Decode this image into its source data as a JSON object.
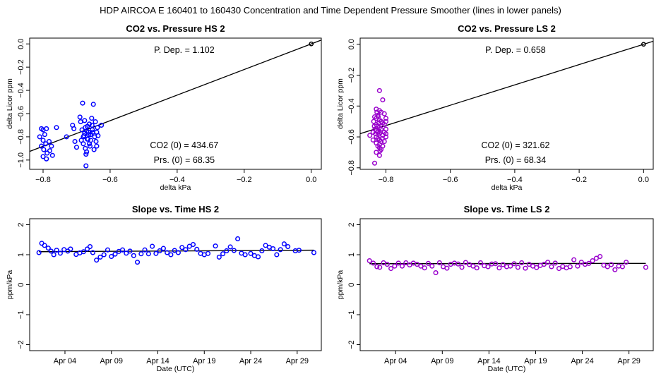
{
  "suptitle": "HDP    AIRCOA E    160401 to 160430    Concentration and Time Dependent Pressure Smoother (lines in lower panels)",
  "chart_data": [
    {
      "type": "scatter",
      "title": "CO2 vs. Pressure HS 2",
      "xlabel": "delta kPa",
      "ylabel": "delta Licor ppm",
      "xlim": [
        -0.84,
        0.03
      ],
      "ylim": [
        -1.08,
        0.05
      ],
      "xticks": [
        -0.8,
        -0.6,
        -0.4,
        -0.2,
        0.0
      ],
      "xtick_labels": [
        "−0.8",
        "−0.6",
        "−0.4",
        "−0.2",
        "0.0"
      ],
      "yticks": [
        0,
        -0.2,
        -0.4,
        -0.6,
        -0.8,
        -1.0
      ],
      "ytick_labels": [
        "0.0",
        "−0.2",
        "−0.4",
        "−0.6",
        "−0.8",
        "−1.0"
      ],
      "color": "#0000ff",
      "fit_line": {
        "slope": 1.102,
        "intercept": 0.0
      },
      "origin_point": [
        0,
        0
      ],
      "annotations": {
        "p_dep": "P. Dep. =  1.102",
        "co2_0": "CO2 (0) =  434.67",
        "prs_0": "Prs. (0) =  68.35"
      },
      "points": [
        [
          -0.805,
          -0.73
        ],
        [
          -0.8,
          -0.74
        ],
        [
          -0.795,
          -0.78
        ],
        [
          -0.79,
          -0.73
        ],
        [
          -0.81,
          -0.8
        ],
        [
          -0.8,
          -0.83
        ],
        [
          -0.792,
          -0.86
        ],
        [
          -0.805,
          -0.88
        ],
        [
          -0.798,
          -0.91
        ],
        [
          -0.788,
          -0.94
        ],
        [
          -0.8,
          -0.97
        ],
        [
          -0.79,
          -0.99
        ],
        [
          -0.78,
          -0.92
        ],
        [
          -0.775,
          -0.88
        ],
        [
          -0.782,
          -0.84
        ],
        [
          -0.772,
          -0.96
        ],
        [
          -0.76,
          -0.72
        ],
        [
          -0.73,
          -0.8
        ],
        [
          -0.712,
          -0.7
        ],
        [
          -0.708,
          -0.73
        ],
        [
          -0.705,
          -0.84
        ],
        [
          -0.7,
          -0.89
        ],
        [
          -0.69,
          -0.63
        ],
        [
          -0.688,
          -0.67
        ],
        [
          -0.682,
          -0.51
        ],
        [
          -0.684,
          -0.74
        ],
        [
          -0.68,
          -0.86
        ],
        [
          -0.678,
          -0.79
        ],
        [
          -0.676,
          -0.66
        ],
        [
          -0.674,
          -0.72
        ],
        [
          -0.672,
          -1.05
        ],
        [
          -0.67,
          -0.93
        ],
        [
          -0.668,
          -0.82
        ],
        [
          -0.665,
          -0.76
        ],
        [
          -0.662,
          -0.69
        ],
        [
          -0.66,
          -0.88
        ],
        [
          -0.658,
          -0.78
        ],
        [
          -0.655,
          -0.64
        ],
        [
          -0.653,
          -0.74
        ],
        [
          -0.65,
          -0.52
        ],
        [
          -0.648,
          -0.91
        ],
        [
          -0.646,
          -0.8
        ],
        [
          -0.644,
          -0.67
        ],
        [
          -0.642,
          -0.84
        ],
        [
          -0.64,
          -0.76
        ],
        [
          -0.638,
          -0.72
        ],
        [
          -0.636,
          -0.79
        ],
        [
          -0.676,
          -0.77
        ],
        [
          -0.68,
          -0.8
        ],
        [
          -0.67,
          -0.75
        ],
        [
          -0.664,
          -0.78
        ],
        [
          -0.666,
          -0.82
        ],
        [
          -0.658,
          -0.83
        ],
        [
          -0.662,
          -0.86
        ],
        [
          -0.654,
          -0.7
        ],
        [
          -0.652,
          -0.76
        ],
        [
          -0.668,
          -0.71
        ],
        [
          -0.686,
          -0.83
        ],
        [
          -0.674,
          -0.9
        ],
        [
          -0.64,
          -0.88
        ],
        [
          -0.626,
          -0.7
        ],
        [
          -0.672,
          -0.95
        ]
      ]
    },
    {
      "type": "scatter",
      "title": "CO2 vs. Pressure LS 2",
      "xlabel": "delta kPa",
      "ylabel": "delta Licor ppm",
      "xlim": [
        -0.88,
        0.03
      ],
      "ylim": [
        -0.81,
        0.04
      ],
      "xticks": [
        -0.8,
        -0.6,
        -0.4,
        -0.2,
        0.0
      ],
      "xtick_labels": [
        "−0.8",
        "−0.6",
        "−0.4",
        "−0.2",
        "0.0"
      ],
      "yticks": [
        0,
        -0.2,
        -0.4,
        -0.6,
        -0.8
      ],
      "ytick_labels": [
        "0.0",
        "−0.2",
        "−0.4",
        "−0.6",
        "−0.8"
      ],
      "color": "#9900cc",
      "fit_line": {
        "slope": 0.658,
        "intercept": 0.0
      },
      "origin_point": [
        0,
        0
      ],
      "annotations": {
        "p_dep": "P. Dep. =  0.658",
        "co2_0": "CO2 (0) =  321.62",
        "prs_0": "Prs. (0) =  68.34"
      },
      "points": [
        [
          -0.82,
          -0.3
        ],
        [
          -0.81,
          -0.36
        ],
        [
          -0.83,
          -0.42
        ],
        [
          -0.82,
          -0.43
        ],
        [
          -0.815,
          -0.44
        ],
        [
          -0.825,
          -0.46
        ],
        [
          -0.83,
          -0.48
        ],
        [
          -0.82,
          -0.49
        ],
        [
          -0.815,
          -0.5
        ],
        [
          -0.81,
          -0.51
        ],
        [
          -0.83,
          -0.52
        ],
        [
          -0.825,
          -0.53
        ],
        [
          -0.82,
          -0.54
        ],
        [
          -0.815,
          -0.55
        ],
        [
          -0.83,
          -0.56
        ],
        [
          -0.825,
          -0.57
        ],
        [
          -0.82,
          -0.58
        ],
        [
          -0.81,
          -0.59
        ],
        [
          -0.83,
          -0.6
        ],
        [
          -0.825,
          -0.61
        ],
        [
          -0.82,
          -0.62
        ],
        [
          -0.815,
          -0.63
        ],
        [
          -0.83,
          -0.64
        ],
        [
          -0.82,
          -0.65
        ],
        [
          -0.825,
          -0.66
        ],
        [
          -0.82,
          -0.67
        ],
        [
          -0.815,
          -0.68
        ],
        [
          -0.83,
          -0.7
        ],
        [
          -0.82,
          -0.72
        ],
        [
          -0.835,
          -0.77
        ],
        [
          -0.85,
          -0.59
        ],
        [
          -0.84,
          -0.57
        ],
        [
          -0.805,
          -0.45
        ],
        [
          -0.8,
          -0.48
        ],
        [
          -0.805,
          -0.52
        ],
        [
          -0.8,
          -0.55
        ],
        [
          -0.805,
          -0.57
        ],
        [
          -0.8,
          -0.6
        ],
        [
          -0.805,
          -0.63
        ],
        [
          -0.8,
          -0.5
        ],
        [
          -0.835,
          -0.47
        ],
        [
          -0.838,
          -0.5
        ],
        [
          -0.836,
          -0.53
        ],
        [
          -0.834,
          -0.55
        ],
        [
          -0.832,
          -0.58
        ],
        [
          -0.84,
          -0.62
        ],
        [
          -0.81,
          -0.66
        ],
        [
          -0.812,
          -0.61
        ],
        [
          -0.818,
          -0.57
        ],
        [
          -0.822,
          -0.51
        ],
        [
          -0.828,
          -0.44
        ],
        [
          -0.8,
          -0.58
        ],
        [
          -0.818,
          -0.69
        ],
        [
          -0.824,
          -0.47
        ]
      ]
    },
    {
      "type": "scatter",
      "title": "Slope vs. Time HS 2",
      "xlabel": "Date (UTC)",
      "ylabel": "ppm/kPa",
      "xlim": [
        0.2,
        31.6
      ],
      "ylim": [
        -2.2,
        2.2
      ],
      "xticks": [
        4,
        9,
        14,
        19,
        24,
        29
      ],
      "xtick_labels": [
        "Apr 04",
        "Apr 09",
        "Apr 14",
        "Apr 19",
        "Apr 24",
        "Apr 29"
      ],
      "yticks": [
        2,
        1,
        0,
        -1,
        -2
      ],
      "ytick_labels": [
        "2",
        "1",
        "0",
        "−1",
        "−2"
      ],
      "color": "#0000ff",
      "smoother_line": [
        [
          1.2,
          1.1
        ],
        [
          30.8,
          1.15
        ]
      ],
      "points": [
        [
          1.2,
          1.07
        ],
        [
          1.5,
          1.38
        ],
        [
          1.8,
          1.31
        ],
        [
          2.2,
          1.22
        ],
        [
          2.5,
          1.12
        ],
        [
          2.8,
          1.0
        ],
        [
          3.1,
          1.15
        ],
        [
          3.5,
          1.05
        ],
        [
          3.9,
          1.17
        ],
        [
          4.3,
          1.12
        ],
        [
          4.6,
          1.19
        ],
        [
          5.2,
          1.01
        ],
        [
          5.6,
          1.06
        ],
        [
          6.0,
          1.1
        ],
        [
          6.4,
          1.19
        ],
        [
          6.7,
          1.27
        ],
        [
          7.0,
          1.07
        ],
        [
          7.4,
          0.82
        ],
        [
          7.8,
          0.92
        ],
        [
          8.2,
          1.0
        ],
        [
          8.6,
          1.16
        ],
        [
          9.0,
          0.94
        ],
        [
          9.4,
          1.02
        ],
        [
          9.8,
          1.11
        ],
        [
          10.2,
          1.16
        ],
        [
          10.6,
          1.05
        ],
        [
          11.0,
          1.12
        ],
        [
          11.4,
          0.97
        ],
        [
          11.8,
          0.75
        ],
        [
          12.2,
          1.03
        ],
        [
          12.6,
          1.16
        ],
        [
          13.0,
          1.03
        ],
        [
          13.4,
          1.28
        ],
        [
          13.8,
          1.04
        ],
        [
          14.2,
          1.13
        ],
        [
          14.6,
          1.21
        ],
        [
          15.0,
          1.07
        ],
        [
          15.4,
          1.0
        ],
        [
          15.8,
          1.14
        ],
        [
          16.2,
          1.07
        ],
        [
          16.6,
          1.24
        ],
        [
          17.0,
          1.17
        ],
        [
          17.4,
          1.28
        ],
        [
          17.8,
          1.34
        ],
        [
          18.2,
          1.18
        ],
        [
          18.6,
          1.04
        ],
        [
          19.0,
          1.0
        ],
        [
          19.4,
          1.04
        ],
        [
          20.2,
          1.29
        ],
        [
          20.6,
          0.92
        ],
        [
          21.0,
          1.03
        ],
        [
          21.4,
          1.13
        ],
        [
          21.8,
          1.26
        ],
        [
          22.2,
          1.14
        ],
        [
          22.6,
          1.53
        ],
        [
          23.0,
          1.05
        ],
        [
          23.4,
          1.0
        ],
        [
          24.0,
          1.04
        ],
        [
          24.4,
          0.97
        ],
        [
          24.8,
          0.93
        ],
        [
          25.2,
          1.13
        ],
        [
          25.6,
          1.31
        ],
        [
          26.0,
          1.25
        ],
        [
          26.4,
          1.2
        ],
        [
          26.8,
          1.0
        ],
        [
          27.2,
          1.17
        ],
        [
          27.6,
          1.36
        ],
        [
          28.0,
          1.27
        ],
        [
          28.8,
          1.13
        ],
        [
          29.2,
          1.15
        ],
        [
          30.8,
          1.07
        ]
      ]
    },
    {
      "type": "scatter",
      "title": "Slope vs. Time LS 2",
      "xlabel": "Date (UTC)",
      "ylabel": "ppm/kPa",
      "xlim": [
        0.2,
        31.6
      ],
      "ylim": [
        -2.2,
        2.2
      ],
      "xticks": [
        4,
        9,
        14,
        19,
        24,
        29
      ],
      "xtick_labels": [
        "Apr 04",
        "Apr 09",
        "Apr 14",
        "Apr 19",
        "Apr 24",
        "Apr 29"
      ],
      "yticks": [
        2,
        1,
        0,
        -1,
        -2
      ],
      "ytick_labels": [
        "2",
        "1",
        "0",
        "−1",
        "−2"
      ],
      "color": "#9900cc",
      "smoother_line": [
        [
          1.2,
          0.7
        ],
        [
          30.8,
          0.71
        ]
      ],
      "points": [
        [
          1.2,
          0.8
        ],
        [
          1.6,
          0.72
        ],
        [
          2.0,
          0.6
        ],
        [
          2.3,
          0.58
        ],
        [
          2.7,
          0.73
        ],
        [
          3.1,
          0.68
        ],
        [
          3.5,
          0.54
        ],
        [
          3.9,
          0.62
        ],
        [
          4.3,
          0.72
        ],
        [
          4.7,
          0.62
        ],
        [
          5.1,
          0.73
        ],
        [
          5.5,
          0.66
        ],
        [
          5.9,
          0.72
        ],
        [
          6.3,
          0.68
        ],
        [
          6.7,
          0.62
        ],
        [
          7.1,
          0.56
        ],
        [
          7.5,
          0.71
        ],
        [
          7.9,
          0.62
        ],
        [
          8.3,
          0.4
        ],
        [
          8.7,
          0.73
        ],
        [
          9.1,
          0.6
        ],
        [
          9.5,
          0.55
        ],
        [
          9.9,
          0.68
        ],
        [
          10.3,
          0.72
        ],
        [
          10.7,
          0.69
        ],
        [
          11.1,
          0.58
        ],
        [
          11.5,
          0.74
        ],
        [
          11.9,
          0.67
        ],
        [
          12.3,
          0.62
        ],
        [
          12.7,
          0.56
        ],
        [
          13.1,
          0.73
        ],
        [
          13.5,
          0.63
        ],
        [
          13.9,
          0.6
        ],
        [
          14.3,
          0.69
        ],
        [
          14.7,
          0.7
        ],
        [
          15.1,
          0.56
        ],
        [
          15.5,
          0.67
        ],
        [
          15.9,
          0.6
        ],
        [
          16.3,
          0.62
        ],
        [
          16.7,
          0.7
        ],
        [
          17.1,
          0.58
        ],
        [
          17.5,
          0.73
        ],
        [
          17.9,
          0.55
        ],
        [
          18.3,
          0.68
        ],
        [
          18.7,
          0.62
        ],
        [
          19.1,
          0.57
        ],
        [
          19.5,
          0.64
        ],
        [
          19.9,
          0.68
        ],
        [
          20.3,
          0.75
        ],
        [
          20.7,
          0.6
        ],
        [
          21.1,
          0.72
        ],
        [
          21.5,
          0.54
        ],
        [
          21.9,
          0.61
        ],
        [
          22.3,
          0.56
        ],
        [
          22.7,
          0.6
        ],
        [
          23.1,
          0.83
        ],
        [
          23.5,
          0.62
        ],
        [
          23.9,
          0.75
        ],
        [
          24.3,
          0.68
        ],
        [
          24.7,
          0.71
        ],
        [
          25.1,
          0.8
        ],
        [
          25.5,
          0.88
        ],
        [
          25.9,
          0.94
        ],
        [
          26.3,
          0.65
        ],
        [
          26.7,
          0.6
        ],
        [
          27.1,
          0.67
        ],
        [
          27.5,
          0.5
        ],
        [
          27.9,
          0.62
        ],
        [
          28.3,
          0.6
        ],
        [
          28.7,
          0.75
        ],
        [
          30.8,
          0.58
        ]
      ]
    }
  ]
}
